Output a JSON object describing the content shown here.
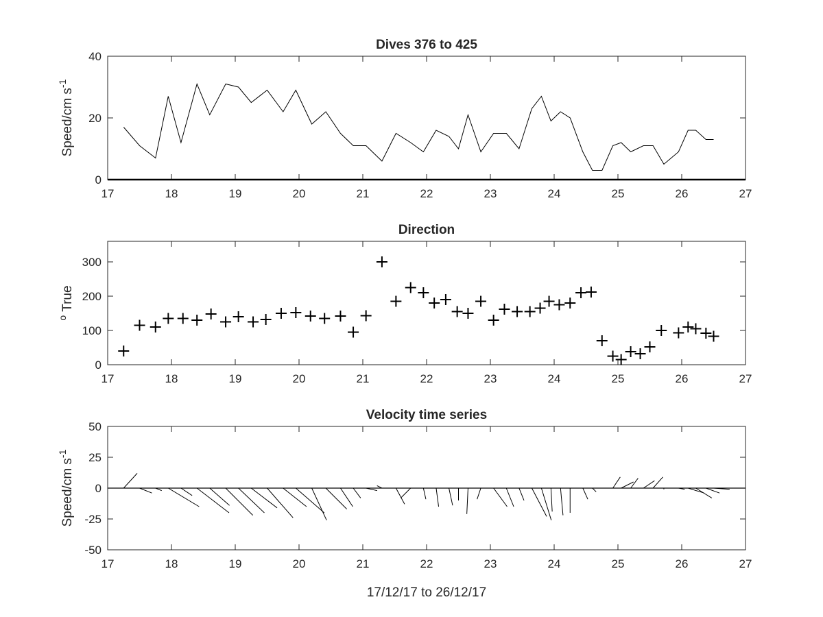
{
  "figure": {
    "xlabel": "17/12/17 to 26/12/17"
  },
  "chart_data": [
    {
      "type": "line",
      "title": "Dives 376 to 425",
      "ylabel_main": "Speed/cm s",
      "ylabel_sup": "-1",
      "xlim": [
        17,
        27
      ],
      "ylim": [
        0,
        40
      ],
      "xticks": [
        "17",
        "18",
        "19",
        "20",
        "21",
        "22",
        "23",
        "24",
        "25",
        "26",
        "27"
      ],
      "yticks": [
        "0",
        "20",
        "40"
      ],
      "grid": false,
      "series": [
        {
          "x": [
            17.25,
            17.5,
            17.75,
            17.95,
            18.15,
            18.4,
            18.6,
            18.85,
            19.05,
            19.25,
            19.5,
            19.75,
            19.95,
            20.2,
            20.42,
            20.65,
            20.85,
            21.05,
            21.3,
            21.52,
            21.75,
            21.95,
            22.15,
            22.35,
            22.5,
            22.65,
            22.85,
            23.05,
            23.25,
            23.45,
            23.65,
            23.8,
            23.95,
            24.1,
            24.25,
            24.45,
            24.6,
            24.75,
            24.92,
            25.05,
            25.2,
            25.4,
            25.55,
            25.72,
            25.95,
            26.1,
            26.22,
            26.38,
            26.5
          ],
          "y": [
            17,
            11,
            7,
            27,
            12,
            31,
            21,
            31,
            30,
            25,
            29,
            22,
            29,
            18,
            22,
            15,
            11,
            11,
            6,
            15,
            12,
            9,
            16,
            14,
            10,
            21,
            9,
            15,
            15,
            10,
            23,
            27,
            19,
            22,
            20,
            9,
            3,
            3,
            11,
            12,
            9,
            11,
            11,
            5,
            9,
            16,
            16,
            13,
            13
          ]
        }
      ]
    },
    {
      "type": "scatter",
      "title": "Direction",
      "ylabel_main": "True",
      "ylabel_sup": "o",
      "xlim": [
        17,
        27
      ],
      "ylim": [
        0,
        360
      ],
      "xticks": [
        "17",
        "18",
        "19",
        "20",
        "21",
        "22",
        "23",
        "24",
        "25",
        "26",
        "27"
      ],
      "yticks": [
        "0",
        "100",
        "200",
        "300"
      ],
      "grid": false,
      "series": [
        {
          "x": [
            17.25,
            17.5,
            17.75,
            17.95,
            18.18,
            18.4,
            18.62,
            18.85,
            19.05,
            19.28,
            19.48,
            19.72,
            19.95,
            20.18,
            20.4,
            20.65,
            20.85,
            21.05,
            21.3,
            21.52,
            21.75,
            21.95,
            22.12,
            22.3,
            22.48,
            22.65,
            22.85,
            23.05,
            23.22,
            23.42,
            23.62,
            23.78,
            23.92,
            24.08,
            24.25,
            24.42,
            24.58,
            24.75,
            24.92,
            25.05,
            25.2,
            25.35,
            25.5,
            25.68,
            25.95,
            26.1,
            26.22,
            26.38,
            26.5
          ],
          "y": [
            40,
            115,
            110,
            135,
            135,
            130,
            148,
            125,
            140,
            125,
            132,
            150,
            152,
            142,
            135,
            142,
            95,
            143,
            300,
            185,
            225,
            210,
            180,
            190,
            155,
            150,
            185,
            130,
            162,
            155,
            155,
            165,
            185,
            175,
            180,
            210,
            212,
            70,
            25,
            15,
            38,
            32,
            52,
            100,
            93,
            110,
            105,
            92,
            83
          ]
        }
      ]
    },
    {
      "type": "stickplot",
      "title": "Velocity time series",
      "ylabel_main": "Speed/cm s",
      "ylabel_sup": "-1",
      "xlim": [
        17,
        27
      ],
      "ylim": [
        -50,
        50
      ],
      "xticks": [
        "17",
        "18",
        "19",
        "20",
        "21",
        "22",
        "23",
        "24",
        "25",
        "26",
        "27"
      ],
      "yticks": [
        "-50",
        "-25",
        "0",
        "25",
        "50"
      ],
      "grid": false,
      "series": [
        {
          "x": [
            17.25,
            17.5,
            17.75,
            17.95,
            18.15,
            18.4,
            18.6,
            18.85,
            19.05,
            19.25,
            19.5,
            19.75,
            19.95,
            20.2,
            20.42,
            20.65,
            20.85,
            21.05,
            21.3,
            21.52,
            21.75,
            21.95,
            22.15,
            22.35,
            22.5,
            22.65,
            22.85,
            23.05,
            23.25,
            23.45,
            23.65,
            23.8,
            23.95,
            24.1,
            24.25,
            24.45,
            24.6,
            24.75,
            24.92,
            25.05,
            25.2,
            25.4,
            25.55,
            25.72,
            25.95,
            26.1,
            26.22,
            26.38,
            26.5
          ],
          "u": [
            11,
            10,
            5,
            25,
            9,
            26,
            16,
            22,
            21,
            21,
            21,
            19,
            23,
            12,
            17,
            10,
            6,
            9,
            -4,
            7,
            -8,
            2,
            2,
            3,
            0,
            -1,
            -3,
            11,
            6,
            4,
            12,
            8,
            1,
            2,
            0,
            4,
            3,
            1,
            6,
            10,
            6,
            9,
            8,
            0,
            5,
            13,
            13,
            11,
            13
          ],
          "v": [
            12,
            -4,
            -2,
            -15,
            -6,
            -20,
            -14,
            -22,
            -20,
            -16,
            -24,
            -15,
            -20,
            -26,
            -17,
            -15,
            -8,
            -2,
            2,
            -13,
            -8,
            -9,
            -15,
            -14,
            -10,
            -21,
            -9,
            -15,
            -15,
            -10,
            -23,
            -26,
            -19,
            -22,
            -20,
            -9,
            -3,
            0,
            9,
            5,
            8,
            6,
            9,
            -1,
            -1,
            -4,
            -8,
            -4,
            -1
          ]
        }
      ]
    }
  ]
}
